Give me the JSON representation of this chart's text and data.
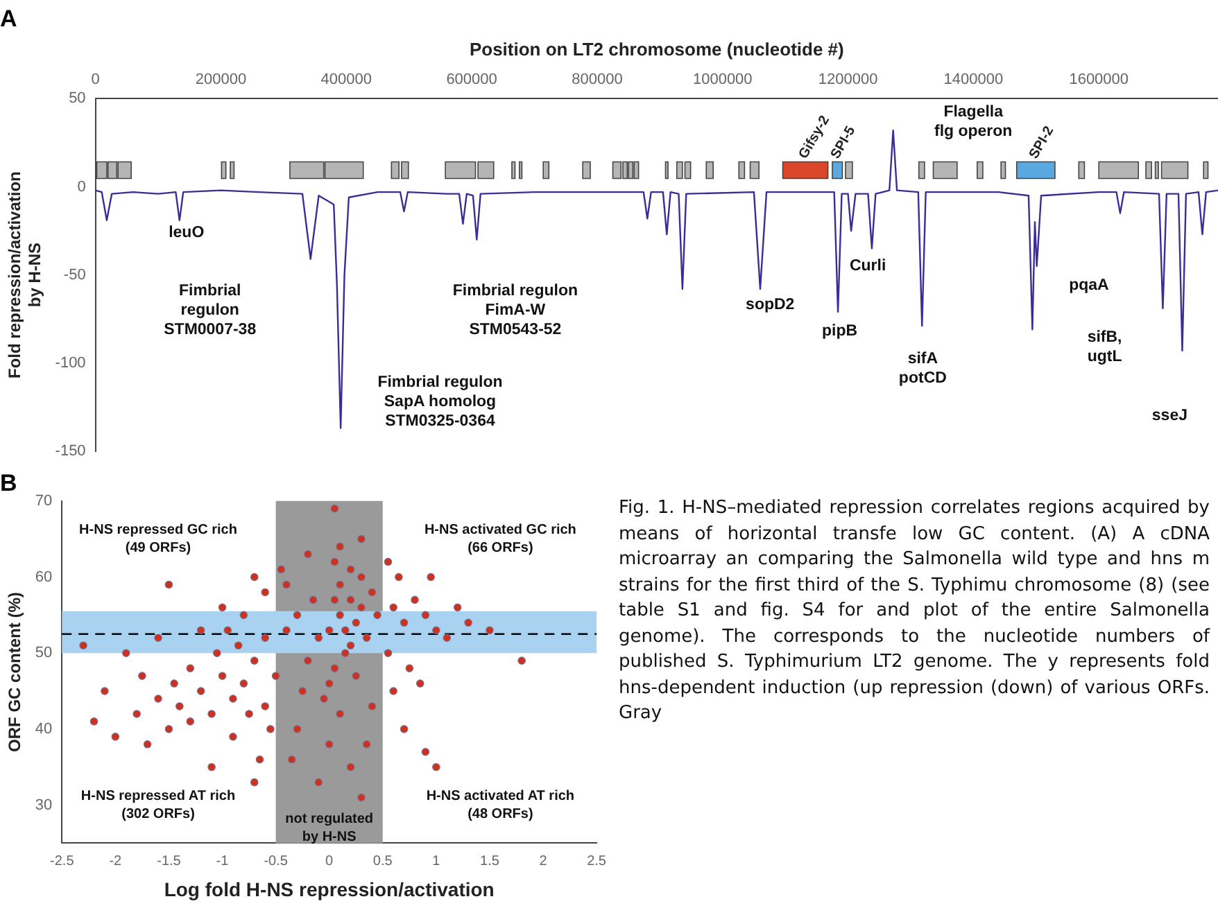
{
  "chart_data": [
    {
      "type": "line",
      "title": "A",
      "xlabel": "Position on LT2 chromosome (nucleotide #)",
      "ylabel": "Fold repression/activation\nby H-NS",
      "xlim": [
        0,
        1790000
      ],
      "xticks": [
        0,
        200000,
        400000,
        600000,
        800000,
        1000000,
        1200000,
        1400000,
        1600000
      ],
      "ylim": [
        -150,
        50
      ],
      "yticks": [
        -150,
        -100,
        -50,
        0,
        50
      ],
      "grid": false,
      "legend": false,
      "marker": "none",
      "line_style": "solid",
      "series": [
        {
          "color": "#3b2c96",
          "x": [
            0,
            10000,
            18000,
            26000,
            60000,
            100000,
            128000,
            134000,
            140000,
            200000,
            260000,
            330000,
            343000,
            356000,
            380000,
            385000,
            391000,
            397000,
            404000,
            450000,
            486000,
            492000,
            498000,
            560000,
            580000,
            586000,
            592000,
            602000,
            608000,
            614000,
            700000,
            850000,
            874000,
            880000,
            886000,
            905000,
            911000,
            917000,
            930000,
            936000,
            942000,
            1050000,
            1060000,
            1070000,
            1178000,
            1184000,
            1190000,
            1200000,
            1205000,
            1212000,
            1232000,
            1238000,
            1244000,
            1266000,
            1272000,
            1278000,
            1312000,
            1318000,
            1324000,
            1440000,
            1488000,
            1494000,
            1498000,
            1501000,
            1508000,
            1600000,
            1628000,
            1634000,
            1640000,
            1696000,
            1702000,
            1708000,
            1727000,
            1733000,
            1739000,
            1759000,
            1765000,
            1771000,
            1790000
          ],
          "values": [
            -2,
            -3,
            -19,
            -4,
            -3,
            -4,
            -3,
            -19,
            -3,
            -2,
            -3,
            -4,
            -41,
            -5,
            -10,
            -55,
            -137,
            -50,
            -6,
            -3,
            -3,
            -14,
            -3,
            -4,
            -4,
            -21,
            -4,
            -5,
            -30,
            -4,
            -3,
            -3,
            -3,
            -18,
            -3,
            -3,
            -27,
            -3,
            -4,
            -58,
            -4,
            -3,
            -58,
            -3,
            -3,
            -71,
            -4,
            -4,
            -25,
            -4,
            -4,
            -35,
            -4,
            -2,
            32,
            -2,
            -3,
            -79,
            -3,
            -3,
            -5,
            -81,
            -20,
            -45,
            -5,
            -3,
            -3,
            -15,
            -3,
            -4,
            -69,
            -4,
            -4,
            -93,
            -4,
            -3,
            -27,
            -3,
            -2
          ]
        }
      ],
      "bands": [
        {
          "axis": "x",
          "from": 2000,
          "to": 18000,
          "color": "#b5b5b5"
        },
        {
          "axis": "x",
          "from": 20000,
          "to": 34000,
          "color": "#b5b5b5"
        },
        {
          "axis": "x",
          "from": 36000,
          "to": 57000,
          "color": "#b5b5b5"
        },
        {
          "axis": "x",
          "from": 201000,
          "to": 208000,
          "color": "#b5b5b5"
        },
        {
          "axis": "x",
          "from": 215000,
          "to": 221000,
          "color": "#b5b5b5"
        },
        {
          "axis": "x",
          "from": 310000,
          "to": 364000,
          "color": "#b5b5b5"
        },
        {
          "axis": "x",
          "from": 366000,
          "to": 427000,
          "color": "#b5b5b5"
        },
        {
          "axis": "x",
          "from": 472000,
          "to": 484000,
          "color": "#b5b5b5"
        },
        {
          "axis": "x",
          "from": 488000,
          "to": 499000,
          "color": "#b5b5b5"
        },
        {
          "axis": "x",
          "from": 558000,
          "to": 606000,
          "color": "#b5b5b5"
        },
        {
          "axis": "x",
          "from": 610000,
          "to": 635000,
          "color": "#b5b5b5"
        },
        {
          "axis": "x",
          "from": 664000,
          "to": 669000,
          "color": "#b5b5b5"
        },
        {
          "axis": "x",
          "from": 676000,
          "to": 680000,
          "color": "#b5b5b5"
        },
        {
          "axis": "x",
          "from": 714000,
          "to": 723000,
          "color": "#b5b5b5"
        },
        {
          "axis": "x",
          "from": 777000,
          "to": 789000,
          "color": "#b5b5b5"
        },
        {
          "axis": "x",
          "from": 825000,
          "to": 838000,
          "color": "#b5b5b5"
        },
        {
          "axis": "x",
          "from": 841000,
          "to": 848000,
          "color": "#b5b5b5"
        },
        {
          "axis": "x",
          "from": 850000,
          "to": 857000,
          "color": "#b5b5b5"
        },
        {
          "axis": "x",
          "from": 859000,
          "to": 866000,
          "color": "#b5b5b5"
        },
        {
          "axis": "x",
          "from": 909000,
          "to": 913000,
          "color": "#b5b5b5"
        },
        {
          "axis": "x",
          "from": 927000,
          "to": 936000,
          "color": "#b5b5b5"
        },
        {
          "axis": "x",
          "from": 940000,
          "to": 949000,
          "color": "#b5b5b5"
        },
        {
          "axis": "x",
          "from": 974000,
          "to": 985000,
          "color": "#b5b5b5"
        },
        {
          "axis": "x",
          "from": 1026000,
          "to": 1035000,
          "color": "#b5b5b5"
        },
        {
          "axis": "x",
          "from": 1044000,
          "to": 1058000,
          "color": "#b5b5b5"
        },
        {
          "axis": "x",
          "from": 1096000,
          "to": 1168000,
          "color": "#d9462a",
          "label": "Gifsy-2"
        },
        {
          "axis": "x",
          "from": 1175000,
          "to": 1191000,
          "color": "#5aa8e0",
          "label": "SPI-5"
        },
        {
          "axis": "x",
          "from": 1196000,
          "to": 1207000,
          "color": "#b5b5b5"
        },
        {
          "axis": "x",
          "from": 1313000,
          "to": 1322000,
          "color": "#b5b5b5"
        },
        {
          "axis": "x",
          "from": 1336000,
          "to": 1374000,
          "color": "#b5b5b5"
        },
        {
          "axis": "x",
          "from": 1406000,
          "to": 1415000,
          "color": "#b5b5b5"
        },
        {
          "axis": "x",
          "from": 1444000,
          "to": 1451000,
          "color": "#b5b5b5"
        },
        {
          "axis": "x",
          "from": 1469000,
          "to": 1530000,
          "color": "#5aa8e0",
          "label": "SPI-2"
        },
        {
          "axis": "x",
          "from": 1568000,
          "to": 1577000,
          "color": "#b5b5b5"
        },
        {
          "axis": "x",
          "from": 1600000,
          "to": 1663000,
          "color": "#b5b5b5"
        },
        {
          "axis": "x",
          "from": 1675000,
          "to": 1684000,
          "color": "#b5b5b5"
        },
        {
          "axis": "x",
          "from": 1690000,
          "to": 1695000,
          "color": "#b5b5b5"
        },
        {
          "axis": "x",
          "from": 1700000,
          "to": 1742000,
          "color": "#b5b5b5"
        },
        {
          "axis": "x",
          "from": 1767000,
          "to": 1774000,
          "color": "#b5b5b5"
        }
      ],
      "annotations": [
        "leuO",
        "Fimbrial\nregulon\nSTM0007-38",
        "Fimbrial regulon\nSapA homolog\nSTM0325-0364",
        "Fimbrial regulon\nFimA-W\nSTM0543-52",
        "sopD2",
        "pipB",
        "Curli",
        "Flagella\nflg operon",
        "sifA\npotCD",
        "pqaA",
        "sifB,\nugtL",
        "sseJ"
      ]
    },
    {
      "type": "scatter",
      "title": "B",
      "xlabel": "Log fold H-NS repression/activation",
      "ylabel": "ORF GC content (%)",
      "xlim": [
        -2.5,
        2.5
      ],
      "xticks": [
        -2.5,
        -2,
        -1.5,
        -1,
        -0.5,
        0,
        0.5,
        1,
        1.5,
        2,
        2.5
      ],
      "ylim": [
        25,
        70
      ],
      "yticks": [
        30,
        40,
        50,
        60,
        70
      ],
      "grid": false,
      "legend": false,
      "marker": "circle",
      "series": [
        {
          "color": "#d0301e",
          "x": [
            0.1,
            0.2,
            0,
            0.15,
            0.05,
            -0.1,
            0.25,
            0.3,
            0.1,
            0.2,
            0,
            -0.2,
            -0.3,
            0.35,
            0.05,
            0.15,
            0.4,
            -0.05,
            0.1,
            -0.15,
            0.25,
            0.3,
            0.05,
            -0.25,
            0.2,
            0.45,
            -0.4,
            0.1,
            0,
            0.2,
            0.6,
            0.7,
            0.8,
            0.65,
            0.9,
            1.0,
            0.55,
            0.75,
            0.6,
            0.85,
            1.1,
            1.3,
            1.5,
            1.8,
            1.2,
            0.7,
            0.9,
            1.0,
            0.55,
            0.95,
            -0.6,
            -0.7,
            -0.8,
            -0.9,
            -1.0,
            -1.1,
            -1.2,
            -1.3,
            -1.4,
            -1.5,
            -1.6,
            -1.7,
            -1.8,
            -2.0,
            -2.2,
            -0.6,
            -0.7,
            -0.8,
            -1.0,
            -1.2,
            -1.5,
            -1.6,
            -1.9,
            -2.3,
            -0.55,
            -0.65,
            -0.9,
            -1.1,
            -0.7,
            -0.6,
            -1.3,
            -0.85,
            -0.75,
            -1.05,
            -1.45,
            -0.95,
            -2.1,
            -1.75,
            -0.5,
            -0.45,
            -0.3,
            0.35,
            -0.1,
            0.3,
            -0.35,
            0.05,
            0.3,
            -0.2,
            0.4,
            -0.4
          ],
          "values": [
            55,
            57,
            53,
            50,
            48,
            52,
            54,
            56,
            59,
            61,
            46,
            49,
            55,
            52,
            57,
            53,
            58,
            44,
            42,
            57,
            47,
            60,
            62,
            45,
            51,
            55,
            53,
            64,
            38,
            35,
            56,
            54,
            57,
            60,
            55,
            53,
            50,
            48,
            45,
            46,
            52,
            54,
            53,
            49,
            56,
            40,
            37,
            35,
            62,
            60,
            52,
            49,
            46,
            44,
            47,
            42,
            45,
            41,
            43,
            40,
            44,
            38,
            42,
            39,
            41,
            58,
            60,
            55,
            56,
            53,
            59,
            52,
            50,
            51,
            40,
            36,
            39,
            35,
            33,
            43,
            48,
            51,
            42,
            50,
            46,
            53,
            45,
            47,
            47,
            61,
            40,
            38,
            33,
            31,
            36,
            69,
            65,
            63,
            43,
            59
          ]
        }
      ],
      "bands": [
        {
          "axis": "x",
          "from": -0.5,
          "to": 0.5,
          "color": "#9a9a9a"
        },
        {
          "axis": "y",
          "from": 50,
          "to": 55.5,
          "color": "#a9d2f0"
        }
      ],
      "ref_lines": [
        {
          "axis": "y",
          "value": 52.5,
          "line_style": "dashed",
          "color": "#000000"
        }
      ],
      "annotations": [
        "H-NS repressed GC rich\n(49 ORFs)",
        "H-NS activated GC rich\n(66 ORFs)",
        "H-NS repressed AT rich\n(302 ORFs)",
        "H-NS activated AT rich\n(48 ORFs)",
        "not regulated\nby H-NS",
        "Fig. 1. H-NS–mediated repression correlates regions acquired by means of horizontal transfe low GC content. (A) A cDNA microarray an comparing the Salmonella wild type and hns m strains for the first third of the S. Typhimu chromosome (8) (see table S1 and fig. S4 for and plot of the entire Salmonella genome). The corresponds to the nucleotide numbers of published S. Typhimurium LT2 genome. The y represents fold hns-dependent induction (up repression (down) of various ORFs. Gray"
      ]
    }
  ]
}
